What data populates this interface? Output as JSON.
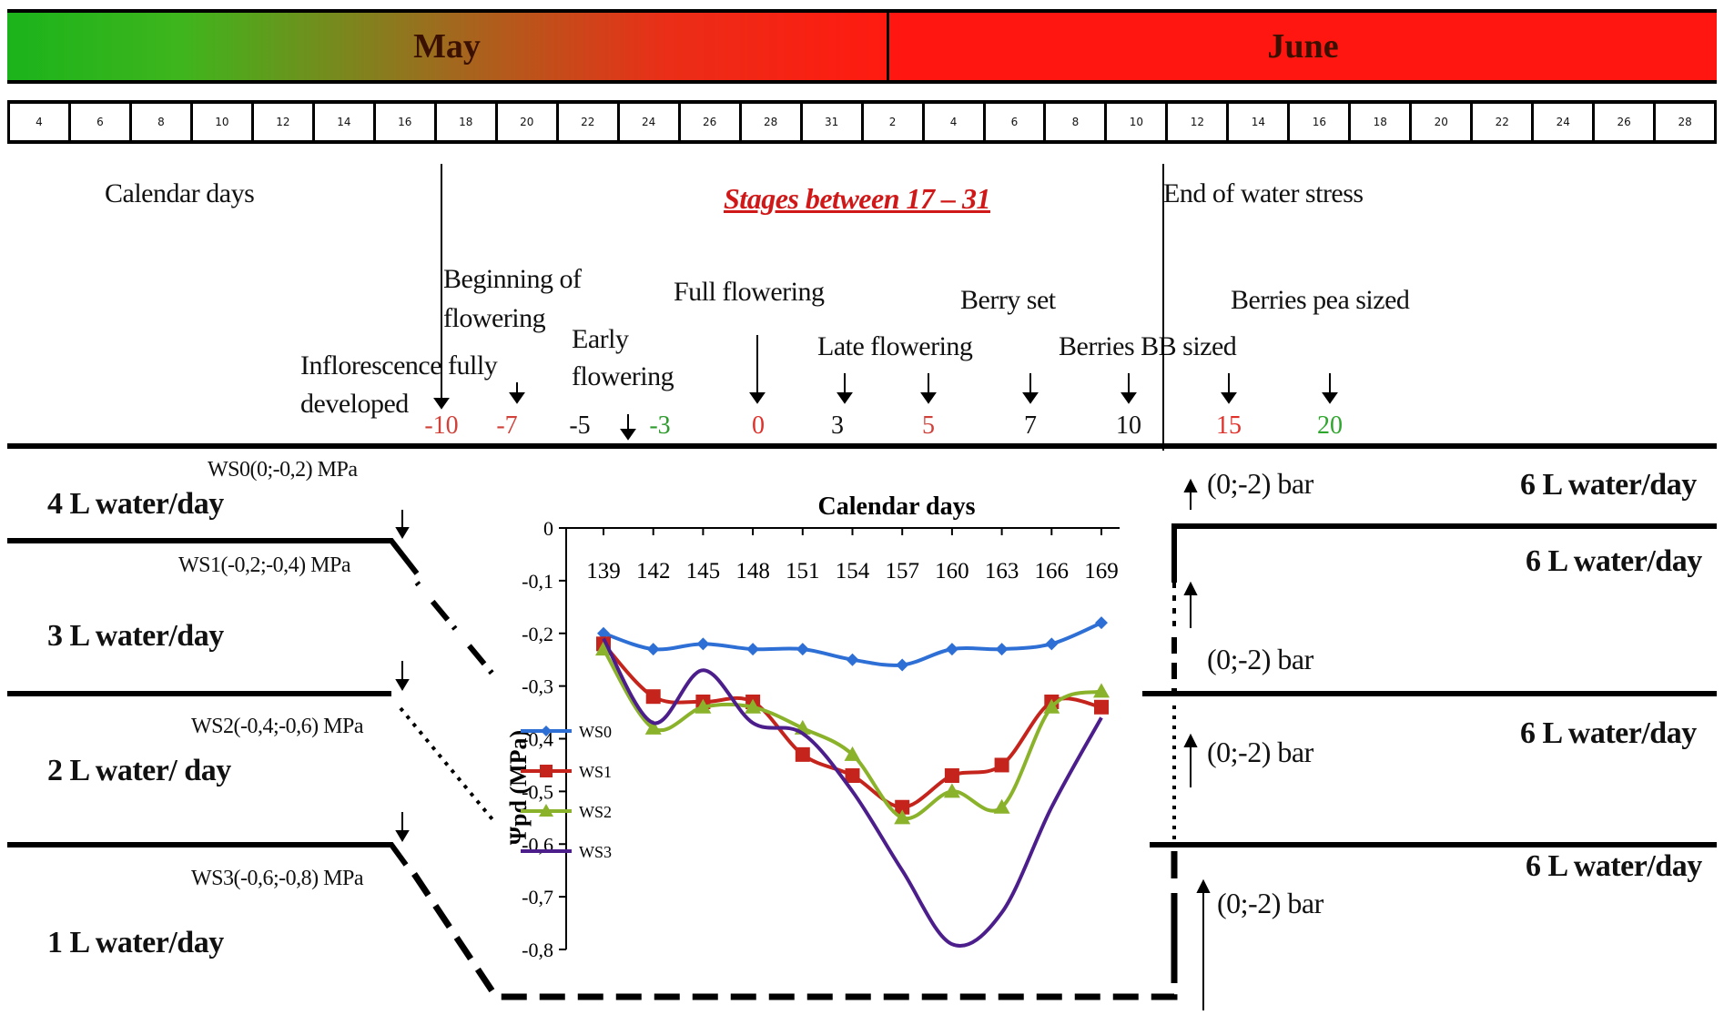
{
  "months": [
    "May",
    "June"
  ],
  "day_ticks": [
    "4",
    "6",
    "8",
    "10",
    "12",
    "14",
    "16",
    "18",
    "20",
    "22",
    "24",
    "26",
    "28",
    "31",
    "2",
    "4",
    "6",
    "8",
    "10",
    "12",
    "14",
    "16",
    "18",
    "20",
    "22",
    "24",
    "26",
    "28"
  ],
  "labels": {
    "calendar_days": "Calendar days",
    "stages_title": "Stages between 17 – 31",
    "end_water_stress": "End of water stress",
    "inflorescence": [
      "Inflorescence fully",
      "developed"
    ],
    "beginning_flowering": [
      "Beginning of",
      "flowering"
    ],
    "early_flowering": [
      "Early",
      "flowering"
    ],
    "full_flowering": "Full flowering",
    "late_flowering": "Late flowering",
    "berry_set": "Berry set",
    "berries_bb": "Berries BB sized",
    "berries_pea": "Berries pea sized"
  },
  "stage_numbers": [
    {
      "text": "-10",
      "color": "#d0413a"
    },
    {
      "text": "-7",
      "color": "#d0413a"
    },
    {
      "text": "-5",
      "color": "#111111"
    },
    {
      "text": "-3",
      "color": "#2e9b2e"
    },
    {
      "text": "0",
      "color": "#e0302a"
    },
    {
      "text": "3",
      "color": "#111111"
    },
    {
      "text": "5",
      "color": "#d0413a"
    },
    {
      "text": "7",
      "color": "#111111"
    },
    {
      "text": "10",
      "color": "#111111"
    },
    {
      "text": "15",
      "color": "#e0302a"
    },
    {
      "text": "20",
      "color": "#2ea62e"
    }
  ],
  "left_side": {
    "ws0": "WS0(0;-0,2) MPa",
    "ws1": "WS1(-0,2;-0,4) MPa",
    "ws2": "WS2(-0,4;-0,6) MPa",
    "ws3": "WS3(-0,6;-0,8) MPa",
    "water4": "4 L water/day",
    "water3": "3 L water/day",
    "water2": "2 L water/ day",
    "water1": "1 L water/day"
  },
  "right_side": {
    "bar1": "(0;-2) bar",
    "bar2": "(0;-2) bar",
    "bar3": "(0;-2) bar",
    "bar4": "(0;-2) bar",
    "water6a": "6 L water/day",
    "water6b": "6 L water/day",
    "water6c": "6 L water/day",
    "water6d": "6 L water/day"
  },
  "chart_data": {
    "type": "line",
    "title": "Calendar days",
    "ylabel": "Ψpd (MPa)",
    "x": [
      139,
      142,
      145,
      148,
      151,
      154,
      157,
      160,
      163,
      166,
      169
    ],
    "ylim": [
      -0.8,
      0
    ],
    "y_ticks": [
      "0",
      "-0,1",
      "-0,2",
      "-0,3",
      "-0,4",
      "-0,5",
      "-0,6",
      "-0,7",
      "-0,8"
    ],
    "legend_position": "bottom-left",
    "series": [
      {
        "name": "WS0",
        "color": "#2e6fd6",
        "marker": "diamond",
        "values": [
          -0.2,
          -0.23,
          -0.22,
          -0.23,
          -0.23,
          -0.25,
          -0.26,
          -0.23,
          -0.23,
          -0.22,
          -0.18
        ]
      },
      {
        "name": "WS1",
        "color": "#c4241c",
        "marker": "square",
        "values": [
          -0.22,
          -0.32,
          -0.33,
          -0.33,
          -0.43,
          -0.47,
          -0.53,
          -0.47,
          -0.45,
          -0.33,
          -0.34
        ]
      },
      {
        "name": "WS2",
        "color": "#8ab22a",
        "marker": "triangle",
        "values": [
          -0.23,
          -0.38,
          -0.34,
          -0.34,
          -0.38,
          -0.43,
          -0.55,
          -0.5,
          -0.53,
          -0.34,
          -0.31
        ]
      },
      {
        "name": "WS3",
        "color": "#4b1e8c",
        "marker": "none",
        "values": [
          -0.21,
          -0.37,
          -0.27,
          -0.37,
          -0.39,
          -0.5,
          -0.65,
          -0.79,
          -0.73,
          -0.53,
          -0.36
        ]
      }
    ]
  }
}
